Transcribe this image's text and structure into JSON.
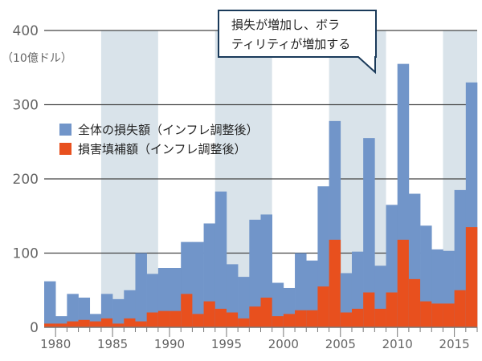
{
  "chart_data": {
    "type": "bar",
    "title": "",
    "ylabel": "（10億ドル）",
    "xlabel": "",
    "ylim": [
      0,
      400
    ],
    "xrange": [
      1979,
      2017
    ],
    "y_ticks": [
      {
        "value": 0,
        "label": "0"
      },
      {
        "value": 100,
        "label": "100"
      },
      {
        "value": 200,
        "label": "200"
      },
      {
        "value": 300,
        "label": "300"
      },
      {
        "value": 400,
        "label": "400"
      }
    ],
    "x_ticks": [
      {
        "value": 1980,
        "label": "1980"
      },
      {
        "value": 1985,
        "label": "1985"
      },
      {
        "value": 1990,
        "label": "1990"
      },
      {
        "value": 1995,
        "label": "1995"
      },
      {
        "value": 2000,
        "label": "2000"
      },
      {
        "value": 2005,
        "label": "2005"
      },
      {
        "value": 2010,
        "label": "2010"
      },
      {
        "value": 2015,
        "label": "2015"
      }
    ],
    "shaded_periods": [
      [
        1984,
        1989
      ],
      [
        1994,
        1999
      ],
      [
        2004,
        2009
      ],
      [
        2014,
        2017
      ]
    ],
    "categories": [
      1980,
      1981,
      1982,
      1983,
      1984,
      1985,
      1986,
      1987,
      1988,
      1989,
      1990,
      1991,
      1992,
      1993,
      1994,
      1995,
      1996,
      1997,
      1998,
      1999,
      2000,
      2001,
      2002,
      2003,
      2004,
      2005,
      2006,
      2007,
      2008,
      2009,
      2010,
      2011,
      2012,
      2013,
      2014,
      2015,
      2016,
      2017
    ],
    "series": [
      {
        "name": "全体の損失額（インフレ調整後）",
        "color": "#7195c9",
        "values": [
          62,
          15,
          45,
          40,
          18,
          45,
          38,
          50,
          100,
          72,
          80,
          80,
          115,
          115,
          140,
          183,
          85,
          68,
          145,
          152,
          60,
          53,
          100,
          90,
          190,
          278,
          73,
          102,
          255,
          83,
          165,
          355,
          180,
          137,
          105,
          103,
          185,
          330
        ]
      },
      {
        "name": "損害填補額（インフレ調整後）",
        "color": "#e8501e",
        "values": [
          5,
          5,
          8,
          10,
          8,
          12,
          5,
          12,
          8,
          20,
          22,
          22,
          45,
          18,
          35,
          25,
          20,
          12,
          28,
          40,
          15,
          18,
          23,
          23,
          55,
          118,
          20,
          25,
          47,
          25,
          47,
          118,
          65,
          35,
          32,
          32,
          50,
          135
        ]
      }
    ],
    "legend_position": "middle-left",
    "annotation": {
      "line1": "損失が増加し、ボラ",
      "line2": "ティリティが増加する"
    }
  }
}
